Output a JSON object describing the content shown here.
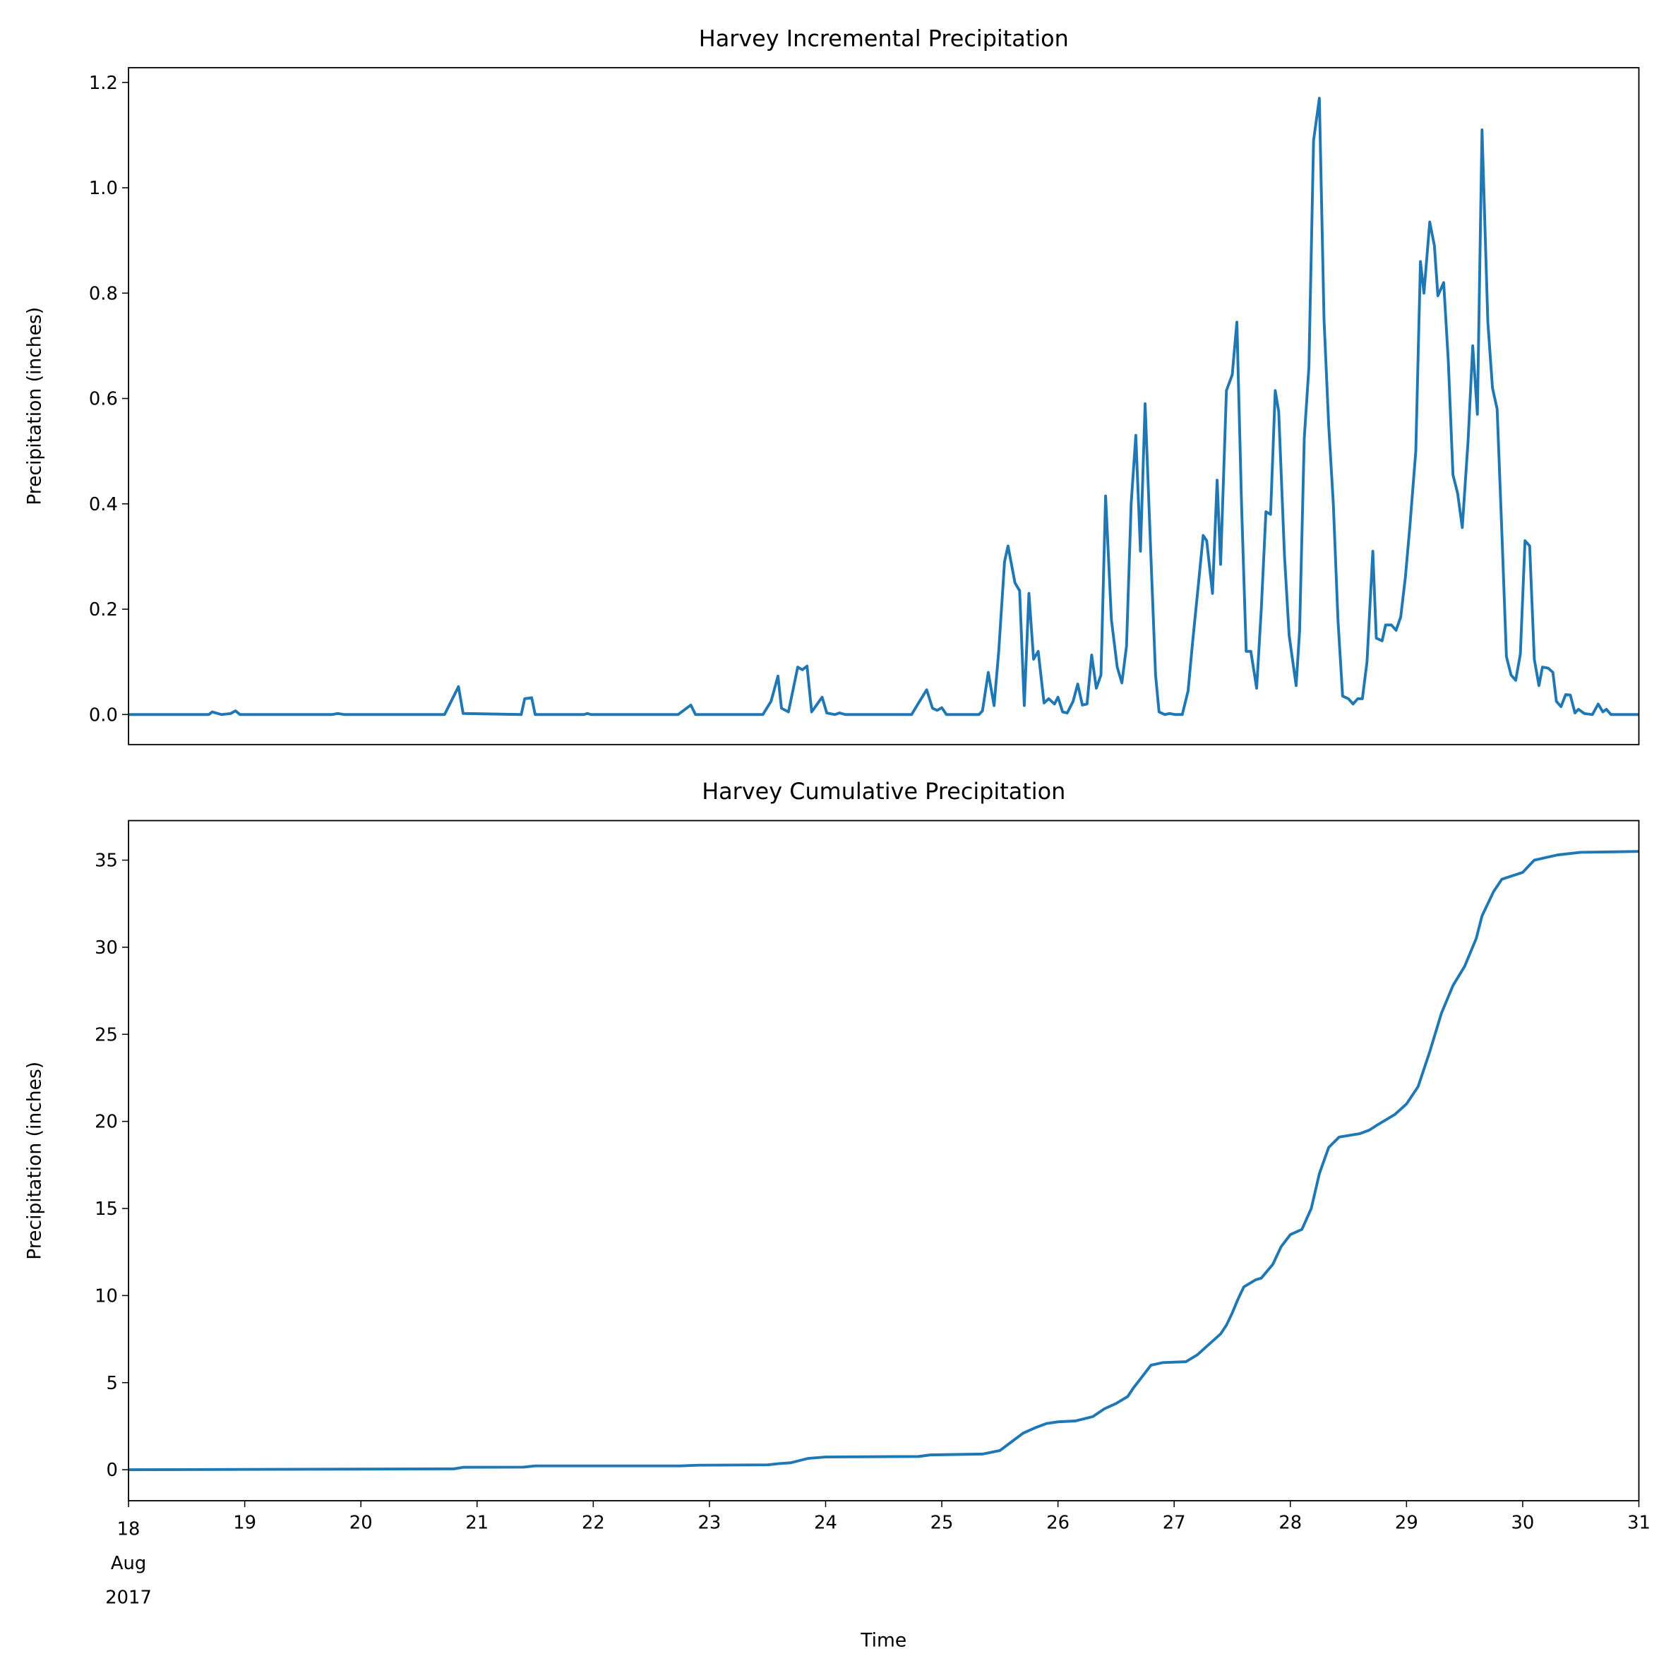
{
  "chart_data": [
    {
      "type": "line",
      "title": "Harvey Incremental Precipitation",
      "ylabel": "Precipitation (inches)",
      "color": "#1f77b4",
      "xlim": [
        18,
        31
      ],
      "ylim": [
        -0.057,
        1.228
      ],
      "yticks": [
        {
          "value": 0,
          "label": "0.0"
        },
        0.2,
        0.4,
        0.6,
        0.8,
        {
          "value": 1,
          "label": "1.0"
        },
        1.2
      ],
      "x": [
        18,
        18.69,
        18.72,
        18.8,
        18.88,
        18.92,
        18.96,
        19.75,
        19.8,
        19.86,
        20.72,
        20.84,
        20.88,
        21.38,
        21.41,
        21.47,
        21.5,
        21.92,
        21.95,
        21.98,
        22.73,
        22.84,
        22.88,
        23.46,
        23.53,
        23.59,
        23.62,
        23.68,
        23.76,
        23.8,
        23.84,
        23.88,
        23.97,
        24.01,
        24.08,
        24.12,
        24.17,
        24.74,
        24.8,
        24.87,
        24.92,
        24.96,
        25.0,
        25.04,
        25.32,
        25.35,
        25.4,
        25.45,
        25.49,
        25.54,
        25.57,
        25.63,
        25.67,
        25.71,
        25.75,
        25.79,
        25.83,
        25.88,
        25.92,
        25.97,
        26.0,
        26.04,
        26.08,
        26.13,
        26.17,
        26.21,
        26.25,
        26.29,
        26.33,
        26.37,
        26.41,
        26.46,
        26.51,
        26.55,
        26.59,
        26.63,
        26.67,
        26.71,
        26.75,
        26.8,
        26.84,
        26.87,
        26.92,
        26.96,
        27.01,
        27.07,
        27.12,
        27.16,
        27.21,
        27.25,
        27.28,
        27.33,
        27.37,
        27.4,
        27.45,
        27.5,
        27.54,
        27.58,
        27.62,
        27.66,
        27.71,
        27.75,
        27.79,
        27.83,
        27.87,
        27.9,
        27.95,
        27.99,
        28.05,
        28.08,
        28.12,
        28.16,
        28.2,
        28.25,
        28.29,
        28.33,
        28.37,
        28.41,
        28.45,
        28.5,
        28.54,
        28.58,
        28.62,
        28.66,
        28.71,
        28.74,
        28.79,
        28.82,
        28.87,
        28.91,
        28.95,
        28.99,
        29.03,
        29.08,
        29.12,
        29.15,
        29.2,
        29.24,
        29.27,
        29.32,
        29.36,
        29.4,
        29.44,
        29.48,
        29.53,
        29.57,
        29.61,
        29.65,
        29.7,
        29.74,
        29.78,
        29.82,
        29.86,
        29.9,
        29.94,
        29.98,
        30.02,
        30.06,
        30.1,
        30.14,
        30.17,
        30.22,
        30.26,
        30.29,
        30.33,
        30.37,
        30.41,
        30.45,
        30.48,
        30.53,
        30.6,
        30.65,
        30.69,
        30.72,
        30.76,
        31
      ],
      "values": [
        0,
        0,
        0.005,
        0,
        0.002,
        0.007,
        0,
        0,
        0.002,
        0,
        0,
        0.053,
        0.002,
        0,
        0.03,
        0.032,
        0,
        0,
        0.002,
        0,
        0,
        0.018,
        0,
        0,
        0.025,
        0.073,
        0.012,
        0.005,
        0.09,
        0.085,
        0.092,
        0.005,
        0.033,
        0.003,
        0,
        0.003,
        0,
        0,
        0.022,
        0.047,
        0.012,
        0.008,
        0.013,
        0,
        0,
        0.007,
        0.08,
        0.017,
        0.12,
        0.29,
        0.32,
        0.25,
        0.235,
        0.017,
        0.23,
        0.105,
        0.12,
        0.022,
        0.03,
        0.02,
        0.033,
        0.005,
        0.003,
        0.025,
        0.058,
        0.018,
        0.02,
        0.113,
        0.05,
        0.075,
        0.415,
        0.18,
        0.09,
        0.06,
        0.13,
        0.4,
        0.53,
        0.31,
        0.59,
        0.3,
        0.075,
        0.005,
        0,
        0.002,
        0,
        0,
        0.045,
        0.14,
        0.25,
        0.34,
        0.33,
        0.23,
        0.445,
        0.285,
        0.615,
        0.645,
        0.745,
        0.4,
        0.12,
        0.12,
        0.05,
        0.2,
        0.385,
        0.38,
        0.615,
        0.575,
        0.3,
        0.15,
        0.055,
        0.16,
        0.525,
        0.66,
        1.09,
        1.17,
        0.75,
        0.55,
        0.4,
        0.18,
        0.035,
        0.03,
        0.02,
        0.03,
        0.03,
        0.1,
        0.31,
        0.145,
        0.14,
        0.17,
        0.17,
        0.16,
        0.185,
        0.26,
        0.36,
        0.5,
        0.86,
        0.8,
        0.935,
        0.89,
        0.795,
        0.82,
        0.67,
        0.455,
        0.42,
        0.355,
        0.52,
        0.7,
        0.57,
        1.11,
        0.745,
        0.62,
        0.58,
        0.35,
        0.11,
        0.075,
        0.065,
        0.115,
        0.33,
        0.32,
        0.105,
        0.055,
        0.09,
        0.088,
        0.08,
        0.025,
        0.015,
        0.038,
        0.037,
        0.003,
        0.01,
        0.002,
        0,
        0.02,
        0.005,
        0.01,
        0,
        0
      ]
    },
    {
      "type": "line",
      "title": "Harvey Cumulative Precipitation",
      "ylabel": "Precipitation (inches)",
      "xlabel": "Time",
      "color": "#1f77b4",
      "xlim": [
        18,
        31
      ],
      "ylim": [
        -1.78,
        37.27
      ],
      "xticks": [
        18,
        19,
        20,
        21,
        22,
        23,
        24,
        25,
        26,
        27,
        28,
        29,
        30,
        31
      ],
      "xtick_sublabels": [
        "Aug",
        "2017"
      ],
      "yticks": [
        0,
        5,
        10,
        15,
        20,
        25,
        30,
        35
      ],
      "x": [
        18,
        20.8,
        20.88,
        21.4,
        21.5,
        22.75,
        22.9,
        23.5,
        23.6,
        23.7,
        23.85,
        24.0,
        24.8,
        24.9,
        25.35,
        25.5,
        25.6,
        25.7,
        25.8,
        25.9,
        26.0,
        26.15,
        26.3,
        26.4,
        26.5,
        26.6,
        26.65,
        26.72,
        26.8,
        26.9,
        27.1,
        27.2,
        27.3,
        27.4,
        27.45,
        27.5,
        27.55,
        27.6,
        27.7,
        27.75,
        27.85,
        27.92,
        28.0,
        28.1,
        28.18,
        28.25,
        28.33,
        28.42,
        28.6,
        28.68,
        28.75,
        28.9,
        29.0,
        29.1,
        29.2,
        29.3,
        29.4,
        29.5,
        29.6,
        29.65,
        29.75,
        29.82,
        30.0,
        30.1,
        30.3,
        30.5,
        31
      ],
      "values": [
        0,
        0.05,
        0.14,
        0.15,
        0.22,
        0.22,
        0.26,
        0.28,
        0.35,
        0.4,
        0.65,
        0.73,
        0.76,
        0.85,
        0.9,
        1.1,
        1.6,
        2.1,
        2.4,
        2.65,
        2.75,
        2.8,
        3.05,
        3.5,
        3.8,
        4.2,
        4.7,
        5.3,
        6.0,
        6.15,
        6.2,
        6.6,
        7.2,
        7.8,
        8.3,
        9.0,
        9.8,
        10.5,
        10.9,
        11.0,
        11.8,
        12.8,
        13.5,
        13.8,
        15.0,
        17.0,
        18.5,
        19.1,
        19.3,
        19.5,
        19.8,
        20.4,
        21.0,
        22.0,
        24.0,
        26.2,
        27.8,
        28.9,
        30.5,
        31.8,
        33.2,
        33.9,
        34.3,
        35.0,
        35.3,
        35.45,
        35.5
      ]
    }
  ]
}
